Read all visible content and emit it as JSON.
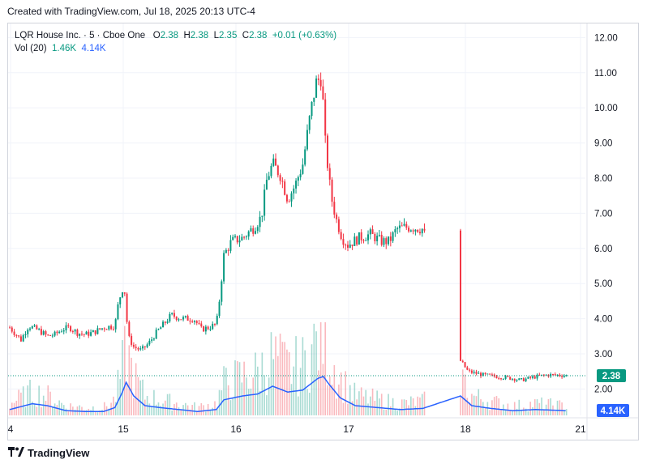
{
  "caption": "Created with TradingView.com, Jul 18, 2025 20:13 UTC-4",
  "legend": {
    "symbol": "LQR House Inc.",
    "interval": "5",
    "exchange": "Cboe One",
    "o_label": "O",
    "o_value": "2.38",
    "h_label": "H",
    "h_value": "2.38",
    "l_label": "L",
    "l_value": "2.35",
    "c_label": "C",
    "c_value": "2.38",
    "change": "+0.01 (+0.63%)",
    "vol_label": "Vol (20)",
    "vol_value": "1.46K",
    "vol_ma_value": "4.14K"
  },
  "footer": {
    "brand": "TradingView"
  },
  "colors": {
    "up": "#089981",
    "down": "#f23645",
    "vol_ma": "#2962ff",
    "price_tag": "#089981",
    "vol_tag": "#2962ff"
  },
  "chart_data": {
    "type": "candlestick",
    "x_ticks": [
      "4",
      "15",
      "16",
      "17",
      "18",
      "21"
    ],
    "y_ticks": [
      "12.00",
      "11.00",
      "10.00",
      "9.00",
      "8.00",
      "7.00",
      "6.00",
      "5.00",
      "4.00",
      "3.00",
      "2.00"
    ],
    "ylim": [
      1.25,
      12.4
    ],
    "last_price": "2.38",
    "last_volume_ma": "4.14K",
    "price_path": [
      [
        0.0,
        3.75
      ],
      [
        0.3,
        3.4
      ],
      [
        0.5,
        3.8
      ],
      [
        0.8,
        3.65
      ],
      [
        1.0,
        3.5
      ],
      [
        1.2,
        3.55
      ],
      [
        1.4,
        3.7
      ],
      [
        1.6,
        3.75
      ],
      [
        1.8,
        3.6
      ],
      [
        2.0,
        3.55
      ],
      [
        2.2,
        3.6
      ],
      [
        2.5,
        3.75
      ],
      [
        2.8,
        3.8
      ],
      [
        2.9,
        4.5
      ],
      [
        3.0,
        4.85
      ],
      [
        3.05,
        4.9
      ],
      [
        3.15,
        3.5
      ],
      [
        3.3,
        3.2
      ],
      [
        3.5,
        3.1
      ],
      [
        3.7,
        3.3
      ],
      [
        3.9,
        3.6
      ],
      [
        4.1,
        3.85
      ],
      [
        4.3,
        4.1
      ],
      [
        4.6,
        4.0
      ],
      [
        4.9,
        4.0
      ],
      [
        5.1,
        3.7
      ],
      [
        5.3,
        3.75
      ],
      [
        5.5,
        3.85
      ],
      [
        5.55,
        4.2
      ],
      [
        5.7,
        5.8
      ],
      [
        5.9,
        6.2
      ],
      [
        6.2,
        6.3
      ],
      [
        6.5,
        6.6
      ],
      [
        6.7,
        6.9
      ],
      [
        6.85,
        8.0
      ],
      [
        7.0,
        8.4
      ],
      [
        7.2,
        8.1
      ],
      [
        7.4,
        7.4
      ],
      [
        7.6,
        7.8
      ],
      [
        7.8,
        8.4
      ],
      [
        8.0,
        9.8
      ],
      [
        8.15,
        10.7
      ],
      [
        8.3,
        10.9
      ],
      [
        8.4,
        9.0
      ],
      [
        8.55,
        7.5
      ],
      [
        8.7,
        6.8
      ],
      [
        8.85,
        6.3
      ],
      [
        9.0,
        6.1
      ],
      [
        9.3,
        6.3
      ],
      [
        9.6,
        6.4
      ],
      [
        9.9,
        6.2
      ],
      [
        10.1,
        6.2
      ],
      [
        10.3,
        6.55
      ],
      [
        10.5,
        6.6
      ],
      [
        10.7,
        6.6
      ],
      [
        11.0,
        6.55
      ],
      [
        12.0,
        2.8
      ],
      [
        12.2,
        2.5
      ],
      [
        12.6,
        2.4
      ],
      [
        13.0,
        2.35
      ],
      [
        13.4,
        2.3
      ],
      [
        13.6,
        2.25
      ],
      [
        13.8,
        2.3
      ],
      [
        14.0,
        2.35
      ],
      [
        14.3,
        2.4
      ],
      [
        14.6,
        2.4
      ],
      [
        14.85,
        2.38
      ]
    ],
    "volume_path": [
      [
        0.0,
        0.15
      ],
      [
        0.6,
        0.3
      ],
      [
        1.0,
        0.25
      ],
      [
        1.5,
        0.12
      ],
      [
        2.0,
        0.1
      ],
      [
        2.5,
        0.1
      ],
      [
        2.8,
        0.2
      ],
      [
        3.0,
        0.6
      ],
      [
        3.1,
        0.85
      ],
      [
        3.3,
        0.5
      ],
      [
        3.6,
        0.25
      ],
      [
        4.0,
        0.2
      ],
      [
        4.5,
        0.15
      ],
      [
        5.0,
        0.1
      ],
      [
        5.5,
        0.15
      ],
      [
        5.7,
        0.4
      ],
      [
        6.2,
        0.5
      ],
      [
        6.6,
        0.55
      ],
      [
        7.0,
        0.75
      ],
      [
        7.4,
        0.6
      ],
      [
        7.8,
        0.65
      ],
      [
        8.2,
        0.95
      ],
      [
        8.35,
        1.0
      ],
      [
        8.5,
        0.8
      ],
      [
        8.8,
        0.45
      ],
      [
        9.2,
        0.25
      ],
      [
        9.8,
        0.2
      ],
      [
        10.4,
        0.15
      ],
      [
        11.0,
        0.18
      ],
      [
        12.0,
        0.5
      ],
      [
        12.3,
        0.25
      ],
      [
        12.8,
        0.18
      ],
      [
        13.4,
        0.12
      ],
      [
        14.0,
        0.15
      ],
      [
        14.85,
        0.12
      ]
    ]
  }
}
